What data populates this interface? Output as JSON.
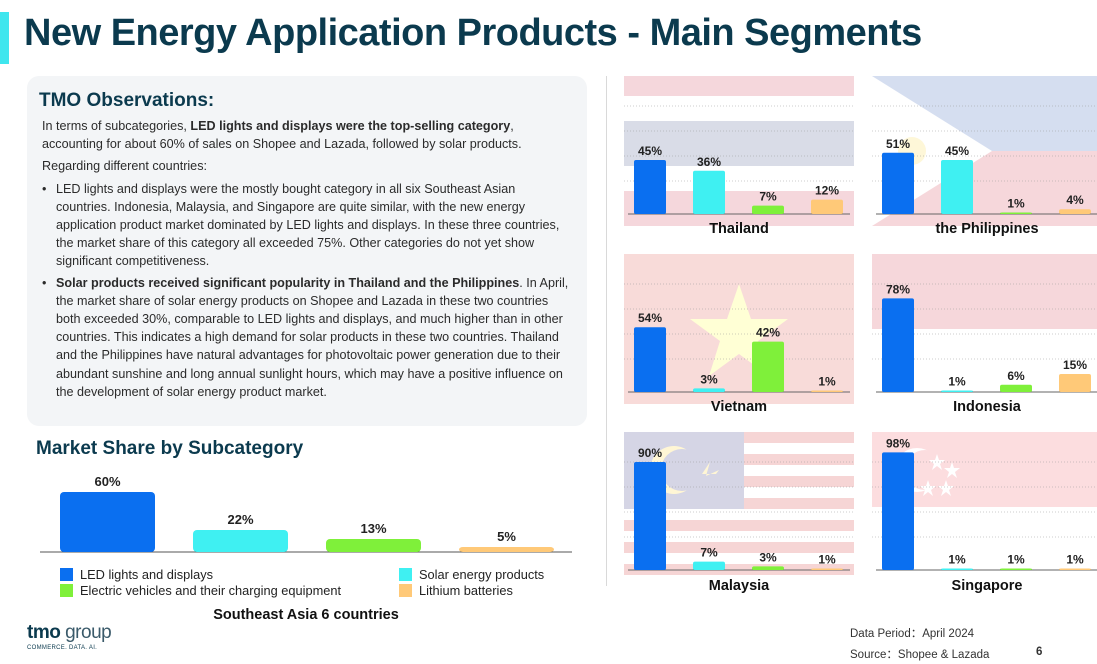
{
  "title": "New Energy Application Products - Main Segments",
  "observations": {
    "heading": "TMO Observations:",
    "p1_pre": "In terms of subcategories, ",
    "p1_bold": "LED lights and displays were the top-selling category",
    "p1_post": ", accounting for about 60% of sales on Shopee and Lazada, followed by solar products.",
    "p2": "Regarding different countries:",
    "bullet1": "LED lights and displays were the mostly bought category in all six Southeast Asian countries. Indonesia, Malaysia, and Singapore are quite similar, with the new energy application product market dominated by LED lights and displays. In these three countries, the market share of this category all exceeded 75%. Other categories do not yet show significant competitiveness.",
    "bullet2_bold": "Solar products received significant popularity in Thailand and the Philippines",
    "bullet2_post": ". In April, the market share of solar energy products on Shopee and Lazada in these two countries both exceeded 30%, comparable to LED lights and displays, and much higher than in other countries. This indicates a high demand for solar products in these two countries. Thailand and the Philippines have natural advantages for photovoltaic power generation due to their abundant sunshine and long annual sunlight hours, which may have a positive influence on the development of solar energy product market."
  },
  "market_share": {
    "heading": "Market Share by Subcategory",
    "subtitle": "Southeast Asia 6 countries"
  },
  "colors": {
    "led": "#0a6ff0",
    "solar": "#3ff0f2",
    "ev": "#7ff03a",
    "lithium": "#ffc978"
  },
  "chart_data": [
    {
      "type": "bar",
      "title": "Southeast Asia 6 countries",
      "categories": [
        "LED lights and displays",
        "Solar energy products",
        "Electric vehicles and their charging equipment",
        "Lithium batteries"
      ],
      "values": [
        60,
        22,
        13,
        5
      ],
      "labels": [
        "60%",
        "22%",
        "13%",
        "5%"
      ],
      "ylim": [
        0,
        60
      ],
      "legend": "bottom"
    },
    {
      "type": "bar",
      "title": "Thailand",
      "categories": [
        "LED lights and displays",
        "Solar energy products",
        "Electric vehicles and their charging equipment",
        "Lithium batteries"
      ],
      "values": [
        45,
        36,
        7,
        12
      ],
      "labels": [
        "45%",
        "36%",
        "7%",
        "12%"
      ]
    },
    {
      "type": "bar",
      "title": "the Philippines",
      "categories": [
        "LED lights and displays",
        "Solar energy products",
        "Electric vehicles and their charging equipment",
        "Lithium batteries"
      ],
      "values": [
        51,
        45,
        1,
        4
      ],
      "labels": [
        "51%",
        "45%",
        "1%",
        "4%"
      ]
    },
    {
      "type": "bar",
      "title": "Vietnam",
      "categories": [
        "LED lights and displays",
        "Solar energy products",
        "Electric vehicles and their charging equipment",
        "Lithium batteries"
      ],
      "values": [
        54,
        3,
        42,
        1
      ],
      "labels": [
        "54%",
        "3%",
        "42%",
        "1%"
      ]
    },
    {
      "type": "bar",
      "title": "Indonesia",
      "categories": [
        "LED lights and displays",
        "Solar energy products",
        "Electric vehicles and their charging equipment",
        "Lithium batteries"
      ],
      "values": [
        78,
        1,
        6,
        15
      ],
      "labels": [
        "78%",
        "1%",
        "6%",
        "15%"
      ]
    },
    {
      "type": "bar",
      "title": "Malaysia",
      "categories": [
        "LED lights and displays",
        "Solar energy products",
        "Electric vehicles and their charging equipment",
        "Lithium batteries"
      ],
      "values": [
        90,
        7,
        3,
        1
      ],
      "labels": [
        "90%",
        "7%",
        "3%",
        "1%"
      ]
    },
    {
      "type": "bar",
      "title": "Singapore",
      "categories": [
        "LED lights and displays",
        "Solar energy products",
        "Electric vehicles and their charging equipment",
        "Lithium batteries"
      ],
      "values": [
        98,
        1,
        1,
        1
      ],
      "labels": [
        "98%",
        "1%",
        "1%",
        "1%"
      ]
    }
  ],
  "legend": [
    {
      "name": "LED lights and displays",
      "color": "#0a6ff0"
    },
    {
      "name": "Solar energy products",
      "color": "#3ff0f2"
    },
    {
      "name": "Electric vehicles and their charging equipment",
      "color": "#7ff03a"
    },
    {
      "name": "Lithium batteries",
      "color": "#ffc978"
    }
  ],
  "footer": {
    "logo_main": "tmo",
    "logo_sub": " group",
    "logo_tagline": "COMMERCE. DATA. AI.",
    "data_period": "Data Period：April 2024",
    "source": "Source：Shopee & Lazada",
    "page": "6"
  }
}
